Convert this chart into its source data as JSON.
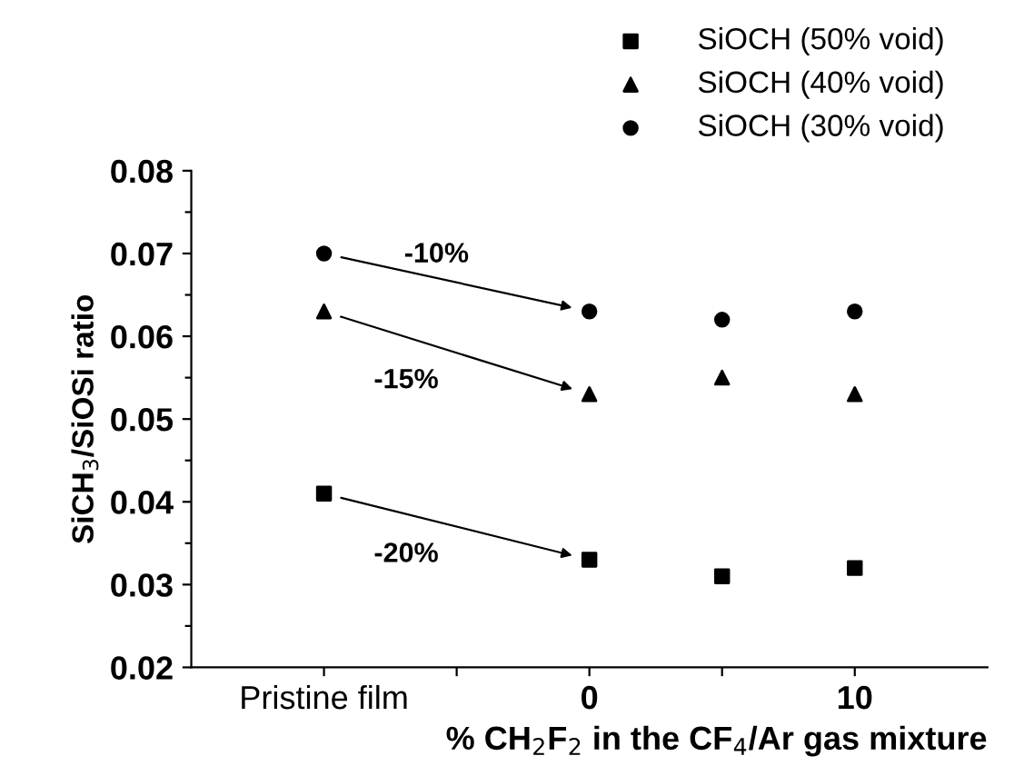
{
  "chart_data": {
    "type": "scatter",
    "xlabel": "% CH$_{2}$F$_{2}$ in the CF$_{4}$/Ar gas mixture",
    "ylabel": "SiCH$_{3}$/SiOSi ratio",
    "x": [
      -10,
      0,
      5,
      10
    ],
    "series": [
      {
        "name": "SiOCH (50% void)",
        "color": "#000000",
        "marker": "square",
        "values": [
          0.041,
          0.033,
          0.031,
          0.032
        ]
      },
      {
        "name": "SiOCH (40% void)",
        "color": "#000000",
        "marker": "triangle",
        "values": [
          0.063,
          0.053,
          0.055,
          0.053
        ]
      },
      {
        "name": "SiOCH (30% void)",
        "color": "#000000",
        "marker": "circle",
        "values": [
          0.07,
          0.063,
          0.062,
          0.063
        ]
      }
    ],
    "xlim": [
      -15,
      15
    ],
    "xticks": [
      {
        "value": -10,
        "label": "Pristine film"
      },
      {
        "value": -5,
        "label": null
      },
      0,
      {
        "value": 5,
        "label": null
      },
      10
    ],
    "ylim": [
      0.02,
      0.08
    ],
    "yticks": [
      0.02,
      {
        "value": 0.025,
        "label": null
      },
      0.03,
      {
        "value": 0.035,
        "label": null
      },
      0.04,
      {
        "value": 0.045,
        "label": null
      },
      0.05,
      {
        "value": 0.055,
        "label": null
      },
      0.06,
      {
        "value": 0.065,
        "label": null
      },
      0.07,
      {
        "value": 0.075,
        "label": null
      },
      0.08
    ],
    "annotations": [
      "-10%",
      "-15%",
      "-20%"
    ],
    "grid": false,
    "legend": "top right"
  }
}
